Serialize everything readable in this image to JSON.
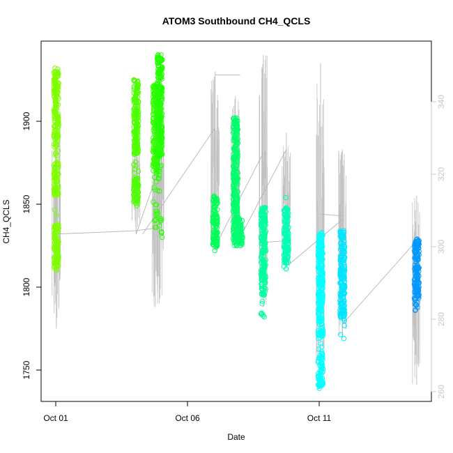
{
  "chart_data": {
    "type": "scatter",
    "title": "ATOM3 Southbound CH4_QCLS",
    "xlabel": "Date",
    "ylabel": "CH4_QCLS",
    "x_ticks": [
      "Oct 01",
      "Oct 06",
      "Oct 11"
    ],
    "x_range_days": [
      0.0,
      14.0
    ],
    "y_left": {
      "ticks": [
        1750,
        1800,
        1850,
        1900
      ],
      "ylim": [
        1728,
        1945
      ]
    },
    "y_right": {
      "ticks": [
        260,
        280,
        300,
        320,
        340
      ],
      "ylim": [
        255,
        355
      ],
      "color": "#c8c8c8"
    },
    "grid": false,
    "colors": {
      "trace": "#c0c0c0",
      "connector": "#b4b4b4"
    },
    "series": [
      {
        "day": 0.02,
        "ymin": 1810,
        "ymax": 1932,
        "color": "#7fff00",
        "dense": [
          [
            1812,
            1838
          ],
          [
            1855,
            1876
          ],
          [
            1886,
            1930
          ]
        ]
      },
      {
        "day": 3.05,
        "ymin": 1849,
        "ymax": 1925,
        "color": "#4cff00",
        "dense": [
          [
            1850,
            1866
          ],
          [
            1880,
            1925
          ]
        ]
      },
      {
        "day": 3.78,
        "ymin": 1836,
        "ymax": 1922,
        "color": "#33ff00",
        "dense": [
          [
            1870,
            1922
          ]
        ]
      },
      {
        "day": 3.95,
        "ymin": 1830,
        "ymax": 1940,
        "color": "#22ff00",
        "dense": [
          [
            1878,
            1940
          ]
        ]
      },
      {
        "day": 6.05,
        "ymin": 1822,
        "ymax": 1855,
        "color": "#00ff55",
        "dense": [
          [
            1824,
            1855
          ]
        ]
      },
      {
        "day": 6.82,
        "ymin": 1825,
        "ymax": 1902,
        "color": "#00ff6a",
        "dense": [
          [
            1825,
            1902
          ]
        ]
      },
      {
        "day": 7.0,
        "ymin": 1825,
        "ymax": 1842,
        "color": "#00ff70",
        "dense": [
          [
            1826,
            1842
          ]
        ]
      },
      {
        "day": 7.88,
        "ymin": 1782,
        "ymax": 1848,
        "color": "#00ff9e",
        "dense": [
          [
            1795,
            1848
          ]
        ]
      },
      {
        "day": 8.75,
        "ymin": 1811,
        "ymax": 1854,
        "color": "#00ffb4",
        "dense": [
          [
            1814,
            1848
          ]
        ]
      },
      {
        "day": 10.05,
        "ymin": 1739,
        "ymax": 1833,
        "color": "#00ffff",
        "dense": [
          [
            1740,
            1760
          ],
          [
            1770,
            1833
          ]
        ]
      },
      {
        "day": 10.88,
        "ymin": 1769,
        "ymax": 1834,
        "color": "#00e5ff",
        "dense": [
          [
            1782,
            1834
          ]
        ]
      },
      {
        "day": 13.7,
        "ymin": 1786,
        "ymax": 1829,
        "color": "#0099ff",
        "dense": [
          [
            1789,
            1829
          ]
        ]
      }
    ],
    "altitude_trace": {
      "columns": [
        {
          "day": 0.02,
          "lo": 1775,
          "hi": 1900
        },
        {
          "day": 3.05,
          "lo": 1832,
          "hi": 1890
        },
        {
          "day": 3.78,
          "lo": 1788,
          "hi": 1912
        },
        {
          "day": 3.95,
          "lo": 1793,
          "hi": 1925
        },
        {
          "day": 6.05,
          "lo": 1823,
          "hi": 1930
        },
        {
          "day": 6.82,
          "lo": 1830,
          "hi": 1915
        },
        {
          "day": 7.88,
          "lo": 1788,
          "hi": 1940
        },
        {
          "day": 8.75,
          "lo": 1812,
          "hi": 1893
        },
        {
          "day": 10.05,
          "lo": 1753,
          "hi": 1935
        },
        {
          "day": 10.88,
          "lo": 1770,
          "hi": 1883
        },
        {
          "day": 13.7,
          "lo": 1741,
          "hi": 1855
        }
      ],
      "connectors": [
        {
          "x": [
            0.02,
            3.05,
            3.95
          ],
          "y": [
            1832,
            1834,
            1836
          ]
        },
        {
          "x": [
            3.05,
            3.95
          ],
          "y": [
            1832,
            1873
          ]
        },
        {
          "x": [
            3.3,
            6.05
          ],
          "y": [
            1832,
            1896
          ]
        },
        {
          "x": [
            6.05,
            7.0
          ],
          "y": [
            1928,
            1928
          ]
        },
        {
          "x": [
            6.1,
            7.88
          ],
          "y": [
            1826,
            1881
          ]
        },
        {
          "x": [
            7.0,
            8.75
          ],
          "y": [
            1830,
            1883
          ]
        },
        {
          "x": [
            7.9,
            8.75
          ],
          "y": [
            1827,
            1828
          ]
        },
        {
          "x": [
            8.8,
            10.9
          ],
          "y": [
            1813,
            1841
          ]
        },
        {
          "x": [
            10.05,
            10.88
          ],
          "y": [
            1844,
            1843
          ]
        },
        {
          "x": [
            10.9,
            13.75
          ],
          "y": [
            1778,
            1829
          ]
        }
      ]
    }
  }
}
